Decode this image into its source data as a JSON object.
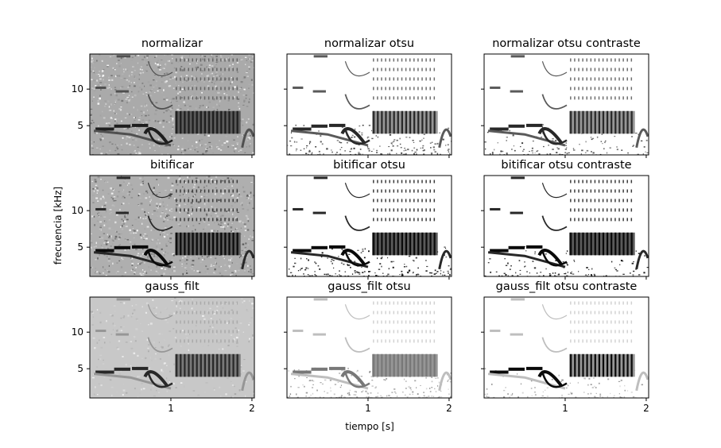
{
  "chart_data": {
    "type": "heatmap",
    "description_free": true,
    "xlabel": "tiempo [s]",
    "ylabel": "frecuencia [kHz]",
    "xlim": [
      0.0,
      2.03
    ],
    "ylim": [
      1.0,
      14.8
    ],
    "xticks": [
      1,
      2
    ],
    "xtick_labels": [
      "1",
      "2"
    ],
    "yticks": [
      5,
      10
    ],
    "ytick_labels": [
      "5",
      "10"
    ],
    "sharex": true,
    "sharey": true,
    "grid": false,
    "colormap": "gray_r",
    "panels": [
      {
        "title": "normalizar",
        "row": 0,
        "col": 0,
        "style": "noisy"
      },
      {
        "title": "normalizar otsu",
        "row": 0,
        "col": 1,
        "style": "otsu"
      },
      {
        "title": "normalizar otsu contraste",
        "row": 0,
        "col": 2,
        "style": "otsu-contrast"
      },
      {
        "title": "bitificar",
        "row": 1,
        "col": 0,
        "style": "noisy-dark"
      },
      {
        "title": "bitificar otsu",
        "row": 1,
        "col": 1,
        "style": "otsu-dark"
      },
      {
        "title": "bitificar otsu contraste",
        "row": 1,
        "col": 2,
        "style": "otsu-contrast-dark"
      },
      {
        "title": "gauss_filt",
        "row": 2,
        "col": 0,
        "style": "smooth"
      },
      {
        "title": "gauss_filt otsu",
        "row": 2,
        "col": 1,
        "style": "smooth-otsu"
      },
      {
        "title": "gauss_filt otsu contraste",
        "row": 2,
        "col": 2,
        "style": "smooth-otsu-contrast"
      }
    ]
  }
}
